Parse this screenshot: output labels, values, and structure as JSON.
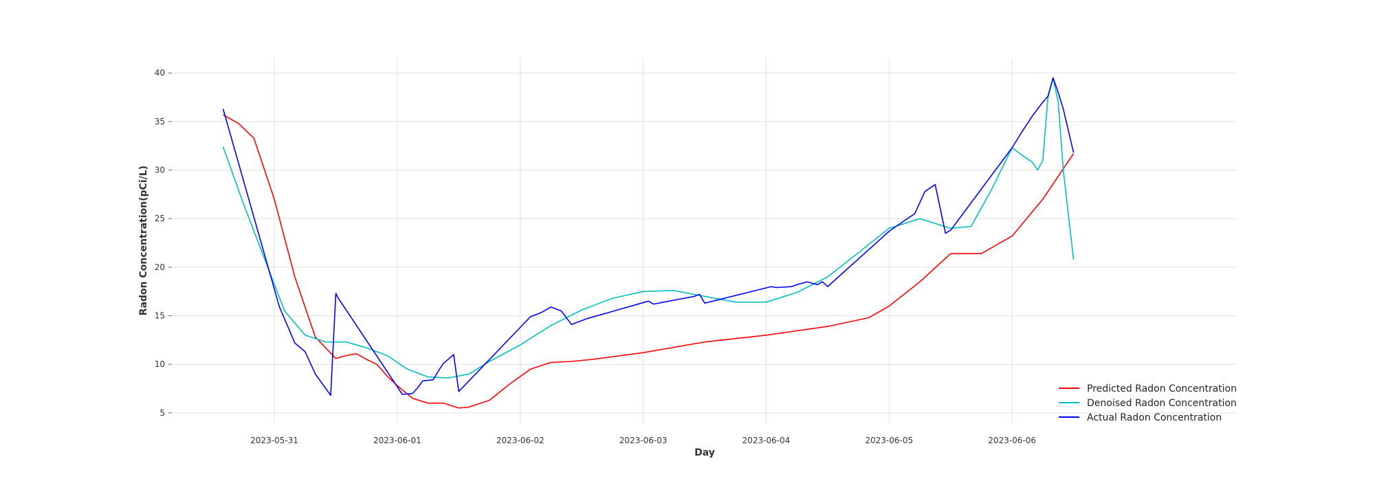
{
  "chart_data": {
    "type": "line",
    "title": "",
    "xlabel": "Day",
    "ylabel": "Radon Concentration(pCi/L)",
    "x_type": "time",
    "xlim": [
      "2023-05-30 04:00",
      "2023-06-07 20:00"
    ],
    "ylim": [
      4,
      41.5
    ],
    "x_ticks": [
      "2023-05-31",
      "2023-06-01",
      "2023-06-02",
      "2023-06-03",
      "2023-06-04",
      "2023-06-05",
      "2023-06-06"
    ],
    "y_ticks": [
      5,
      10,
      15,
      20,
      25,
      30,
      35,
      40
    ],
    "grid": true,
    "legend_position": "bottom-right",
    "series": [
      {
        "name": "Predicted Radon Concentration",
        "color": "#ff0000",
        "x": [
          "2023-05-30 14:00",
          "2023-05-30 17:00",
          "2023-05-30 20:00",
          "2023-05-31 00:00",
          "2023-05-31 04:00",
          "2023-05-31 08:00",
          "2023-05-31 12:00",
          "2023-05-31 14:00",
          "2023-05-31 16:00",
          "2023-05-31 18:00",
          "2023-05-31 20:00",
          "2023-05-31 22:00",
          "2023-06-01 00:00",
          "2023-06-01 03:00",
          "2023-06-01 06:00",
          "2023-06-01 09:00",
          "2023-06-01 12:00",
          "2023-06-01 14:00",
          "2023-06-01 18:00",
          "2023-06-01 22:00",
          "2023-06-02 02:00",
          "2023-06-02 06:00",
          "2023-06-02 10:00",
          "2023-06-02 14:00",
          "2023-06-03 00:00",
          "2023-06-03 12:00",
          "2023-06-04 00:00",
          "2023-06-04 12:00",
          "2023-06-04 20:00",
          "2023-06-05 00:00",
          "2023-06-05 06:00",
          "2023-06-05 12:00",
          "2023-06-05 13:00",
          "2023-06-05 18:00",
          "2023-06-05 20:00",
          "2023-06-06 00:00",
          "2023-06-06 06:00",
          "2023-06-06 12:00"
        ],
        "values": [
          35.7,
          34.8,
          33.3,
          27.0,
          19.0,
          12.8,
          10.6,
          10.9,
          11.1,
          10.5,
          10.0,
          8.8,
          7.8,
          6.5,
          6.0,
          6.0,
          5.5,
          5.6,
          6.3,
          8.0,
          9.5,
          10.2,
          10.3,
          10.5,
          11.2,
          12.3,
          13.0,
          13.9,
          14.8,
          16.0,
          18.5,
          21.4,
          21.4,
          21.4,
          22.0,
          23.2,
          27.0,
          31.7
        ]
      },
      {
        "name": "Denoised Radon Concentration",
        "color": "#00bfbf",
        "x": [
          "2023-05-30 14:00",
          "2023-05-30 18:00",
          "2023-05-30 22:00",
          "2023-05-31 02:00",
          "2023-05-31 06:00",
          "2023-05-31 10:00",
          "2023-05-31 14:00",
          "2023-05-31 18:00",
          "2023-05-31 22:00",
          "2023-06-01 02:00",
          "2023-06-01 06:00",
          "2023-06-01 10:00",
          "2023-06-01 14:00",
          "2023-06-01 18:00",
          "2023-06-02 00:00",
          "2023-06-02 06:00",
          "2023-06-02 12:00",
          "2023-06-02 18:00",
          "2023-06-03 00:00",
          "2023-06-03 06:00",
          "2023-06-03 12:00",
          "2023-06-03 18:00",
          "2023-06-04 00:00",
          "2023-06-04 06:00",
          "2023-06-04 12:00",
          "2023-06-04 18:00",
          "2023-06-05 00:00",
          "2023-06-05 06:00",
          "2023-06-05 12:00",
          "2023-06-05 16:00",
          "2023-06-05 20:00",
          "2023-06-06 00:00",
          "2023-06-06 02:00",
          "2023-06-06 04:00",
          "2023-06-06 05:00",
          "2023-06-06 06:00",
          "2023-06-06 07:00",
          "2023-06-06 08:00",
          "2023-06-06 09:00",
          "2023-06-06 10:00",
          "2023-06-06 12:00"
        ],
        "values": [
          32.4,
          26.5,
          21.0,
          15.5,
          13.0,
          12.3,
          12.3,
          11.7,
          10.9,
          9.5,
          8.7,
          8.6,
          9.0,
          10.3,
          12.0,
          14.0,
          15.6,
          16.8,
          17.5,
          17.6,
          17.0,
          16.4,
          16.4,
          17.4,
          19.0,
          21.5,
          24.0,
          25.0,
          24.0,
          24.2,
          28.0,
          32.3,
          31.5,
          30.8,
          30.0,
          31.0,
          37.5,
          39.5,
          37.0,
          30.0,
          20.8
        ]
      },
      {
        "name": "Actual Radon Concentration",
        "color": "#0000ff",
        "x": [
          "2023-05-30 14:00",
          "2023-05-31 01:00",
          "2023-05-31 04:00",
          "2023-05-31 06:00",
          "2023-05-31 08:00",
          "2023-05-31 11:00",
          "2023-05-31 12:00",
          "2023-05-31 12:30",
          "2023-06-01 01:00",
          "2023-06-01 03:00",
          "2023-06-01 04:00",
          "2023-06-01 05:00",
          "2023-06-01 07:00",
          "2023-06-01 08:00",
          "2023-06-01 09:00",
          "2023-06-01 11:00",
          "2023-06-01 12:00",
          "2023-06-02 02:00",
          "2023-06-02 04:00",
          "2023-06-02 06:00",
          "2023-06-02 08:00",
          "2023-06-02 10:00",
          "2023-06-02 11:00",
          "2023-06-02 12:00",
          "2023-06-02 13:00",
          "2023-06-03 01:00",
          "2023-06-03 02:00",
          "2023-06-03 04:00",
          "2023-06-03 07:00",
          "2023-06-03 10:00",
          "2023-06-03 11:00",
          "2023-06-03 12:00",
          "2023-06-04 01:00",
          "2023-06-04 02:00",
          "2023-06-04 05:00",
          "2023-06-04 06:00",
          "2023-06-04 08:00",
          "2023-06-04 10:00",
          "2023-06-04 11:00",
          "2023-06-04 12:00",
          "2023-06-05 00:00",
          "2023-06-05 03:00",
          "2023-06-05 05:00",
          "2023-06-05 07:00",
          "2023-06-05 09:00",
          "2023-06-05 11:00",
          "2023-06-05 12:00",
          "2023-06-06 00:00",
          "2023-06-06 02:00",
          "2023-06-06 04:00",
          "2023-06-06 06:00",
          "2023-06-06 07:00",
          "2023-06-06 08:00",
          "2023-06-06 09:00",
          "2023-06-06 10:00",
          "2023-06-06 12:00"
        ],
        "values": [
          36.3,
          15.9,
          12.2,
          11.3,
          9.0,
          6.8,
          17.3,
          16.8,
          6.9,
          7.0,
          7.6,
          8.3,
          8.4,
          9.3,
          10.1,
          11.0,
          7.2,
          14.9,
          15.3,
          15.9,
          15.5,
          14.1,
          14.3,
          14.5,
          14.7,
          16.5,
          16.2,
          16.4,
          16.7,
          17.0,
          17.2,
          16.3,
          18.0,
          17.9,
          18.0,
          18.2,
          18.5,
          18.2,
          18.5,
          18.0,
          23.7,
          24.8,
          25.5,
          27.8,
          28.5,
          23.5,
          23.8,
          32.3,
          34.0,
          35.6,
          37.0,
          37.6,
          39.5,
          38.0,
          36.3,
          31.8
        ]
      }
    ]
  }
}
